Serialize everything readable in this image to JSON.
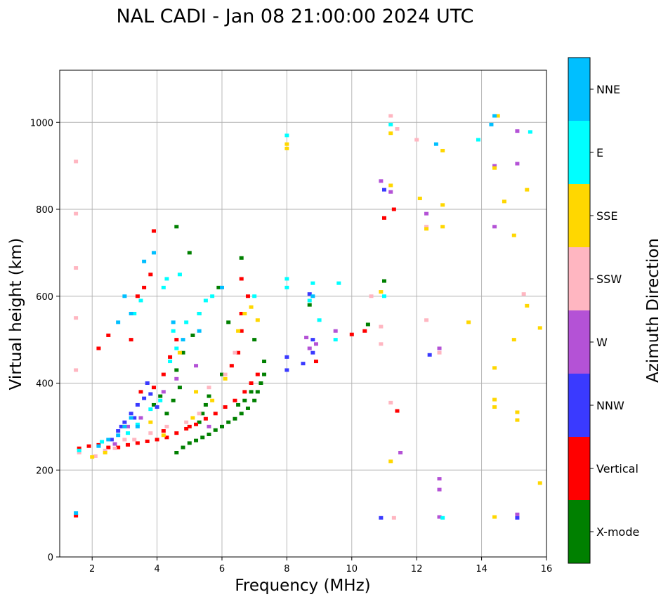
{
  "chart_data": {
    "type": "scatter",
    "title": "NAL CADI - Jan 08 21:00:00 2024 UTC",
    "xlabel": "Frequency (MHz)",
    "ylabel": "Virtual height (km)",
    "xlim": [
      1,
      16
    ],
    "ylim": [
      0,
      1120
    ],
    "xticks": [
      2,
      4,
      6,
      8,
      10,
      12,
      14,
      16
    ],
    "yticks": [
      0,
      200,
      400,
      600,
      800,
      1000
    ],
    "grid": true,
    "colorbar": {
      "label": "Azimuth Direction",
      "categories": [
        {
          "name": "X-mode",
          "color": "#008000"
        },
        {
          "name": "Vertical",
          "color": "#ff0000"
        },
        {
          "name": "NNW",
          "color": "#3a3aff"
        },
        {
          "name": "W",
          "color": "#b452d6"
        },
        {
          "name": "SSW",
          "color": "#ffb6c1"
        },
        {
          "name": "SSE",
          "color": "#ffd700"
        },
        {
          "name": "E",
          "color": "#00ffff"
        },
        {
          "name": "NNE",
          "color": "#00bfff"
        }
      ]
    },
    "series": [
      {
        "name": "X-mode",
        "points": [
          [
            4.6,
            240
          ],
          [
            4.8,
            252
          ],
          [
            5.0,
            262
          ],
          [
            5.2,
            268
          ],
          [
            5.4,
            275
          ],
          [
            5.6,
            282
          ],
          [
            5.8,
            292
          ],
          [
            6.0,
            300
          ],
          [
            6.2,
            310
          ],
          [
            6.4,
            318
          ],
          [
            6.6,
            330
          ],
          [
            6.8,
            342
          ],
          [
            7.0,
            360
          ],
          [
            7.1,
            380
          ],
          [
            7.2,
            400
          ],
          [
            7.3,
            420
          ],
          [
            7.3,
            450
          ],
          [
            6.9,
            380
          ],
          [
            6.7,
            360
          ],
          [
            6.5,
            350
          ],
          [
            5.4,
            330
          ],
          [
            5.5,
            350
          ],
          [
            5.6,
            370
          ],
          [
            5.3,
            310
          ],
          [
            4.3,
            330
          ],
          [
            4.5,
            360
          ],
          [
            4.7,
            390
          ],
          [
            4.6,
            430
          ],
          [
            4.8,
            470
          ],
          [
            5.1,
            510
          ],
          [
            5.3,
            560
          ],
          [
            6.6,
            688
          ],
          [
            4.6,
            760
          ],
          [
            5.9,
            620
          ],
          [
            6.2,
            540
          ],
          [
            7.0,
            500
          ],
          [
            8.7,
            580
          ],
          [
            10.5,
            535
          ],
          [
            11.0,
            635
          ],
          [
            4.1,
            370
          ],
          [
            3.9,
            350
          ],
          [
            6.0,
            420
          ],
          [
            5.0,
            700
          ]
        ]
      },
      {
        "name": "Vertical",
        "points": [
          [
            1.6,
            250
          ],
          [
            1.9,
            255
          ],
          [
            2.2,
            258
          ],
          [
            2.5,
            252
          ],
          [
            2.8,
            252
          ],
          [
            3.1,
            258
          ],
          [
            3.4,
            262
          ],
          [
            3.7,
            266
          ],
          [
            4.0,
            270
          ],
          [
            4.3,
            275
          ],
          [
            4.6,
            285
          ],
          [
            4.9,
            295
          ],
          [
            5.2,
            305
          ],
          [
            5.5,
            318
          ],
          [
            5.8,
            330
          ],
          [
            6.1,
            345
          ],
          [
            6.4,
            360
          ],
          [
            6.7,
            380
          ],
          [
            6.9,
            400
          ],
          [
            7.1,
            420
          ],
          [
            6.3,
            440
          ],
          [
            6.5,
            470
          ],
          [
            6.6,
            520
          ],
          [
            6.6,
            560
          ],
          [
            6.6,
            640
          ],
          [
            6.8,
            600
          ],
          [
            3.5,
            380
          ],
          [
            3.9,
            390
          ],
          [
            4.2,
            420
          ],
          [
            4.4,
            460
          ],
          [
            4.6,
            500
          ],
          [
            3.2,
            500
          ],
          [
            2.5,
            510
          ],
          [
            2.2,
            480
          ],
          [
            3.8,
            650
          ],
          [
            3.6,
            620
          ],
          [
            3.4,
            600
          ],
          [
            3.9,
            750
          ],
          [
            10.4,
            520
          ],
          [
            10.0,
            512
          ],
          [
            11.0,
            780
          ],
          [
            11.3,
            800
          ],
          [
            11.4,
            336
          ],
          [
            8.9,
            450
          ],
          [
            4.2,
            290
          ],
          [
            5.0,
            300
          ],
          [
            1.5,
            95
          ]
        ]
      },
      {
        "name": "NNW",
        "points": [
          [
            2.6,
            270
          ],
          [
            2.8,
            290
          ],
          [
            3.0,
            310
          ],
          [
            3.2,
            330
          ],
          [
            3.4,
            350
          ],
          [
            3.6,
            365
          ],
          [
            3.8,
            375
          ],
          [
            4.0,
            345
          ],
          [
            3.7,
            400
          ],
          [
            3.3,
            320
          ],
          [
            2.9,
            300
          ],
          [
            8.0,
            430
          ],
          [
            8.0,
            460
          ],
          [
            8.5,
            445
          ],
          [
            8.8,
            470
          ],
          [
            8.8,
            500
          ],
          [
            8.7,
            605
          ],
          [
            10.9,
            90
          ],
          [
            11.0,
            845
          ],
          [
            12.4,
            465
          ],
          [
            15.1,
            90
          ]
        ]
      },
      {
        "name": "W",
        "points": [
          [
            2.7,
            260
          ],
          [
            3.1,
            300
          ],
          [
            3.5,
            320
          ],
          [
            4.2,
            380
          ],
          [
            4.6,
            410
          ],
          [
            5.2,
            440
          ],
          [
            5.6,
            300
          ],
          [
            8.6,
            505
          ],
          [
            8.7,
            480
          ],
          [
            8.9,
            490
          ],
          [
            9.5,
            520
          ],
          [
            10.9,
            865
          ],
          [
            11.2,
            840
          ],
          [
            11.5,
            240
          ],
          [
            12.3,
            790
          ],
          [
            12.7,
            155
          ],
          [
            12.7,
            180
          ],
          [
            12.7,
            92
          ],
          [
            12.7,
            480
          ],
          [
            14.4,
            900
          ],
          [
            14.4,
            760
          ],
          [
            15.1,
            905
          ],
          [
            15.1,
            980
          ],
          [
            15.1,
            98
          ]
        ]
      },
      {
        "name": "SSW",
        "points": [
          [
            1.6,
            240
          ],
          [
            2.1,
            232
          ],
          [
            2.4,
            245
          ],
          [
            2.7,
            250
          ],
          [
            3.0,
            270
          ],
          [
            3.3,
            270
          ],
          [
            3.8,
            285
          ],
          [
            4.3,
            300
          ],
          [
            4.9,
            310
          ],
          [
            5.3,
            330
          ],
          [
            5.6,
            390
          ],
          [
            6.1,
            420
          ],
          [
            6.4,
            470
          ],
          [
            1.5,
            665
          ],
          [
            1.5,
            910
          ],
          [
            1.5,
            550
          ],
          [
            1.5,
            430
          ],
          [
            1.5,
            790
          ],
          [
            10.6,
            600
          ],
          [
            10.9,
            490
          ],
          [
            10.9,
            530
          ],
          [
            11.2,
            355
          ],
          [
            11.2,
            1015
          ],
          [
            11.4,
            985
          ],
          [
            11.3,
            90
          ],
          [
            12.3,
            760
          ],
          [
            12.7,
            470
          ],
          [
            12.3,
            545
          ],
          [
            12.0,
            960
          ],
          [
            15.3,
            605
          ]
        ]
      },
      {
        "name": "SSE",
        "points": [
          [
            2.0,
            230
          ],
          [
            2.4,
            240
          ],
          [
            3.0,
            300
          ],
          [
            3.8,
            310
          ],
          [
            4.2,
            280
          ],
          [
            5.1,
            320
          ],
          [
            5.7,
            360
          ],
          [
            6.1,
            410
          ],
          [
            6.5,
            520
          ],
          [
            6.7,
            560
          ],
          [
            6.9,
            575
          ],
          [
            7.1,
            545
          ],
          [
            4.7,
            470
          ],
          [
            5.2,
            380
          ],
          [
            8.0,
            940
          ],
          [
            8.0,
            950
          ],
          [
            10.9,
            610
          ],
          [
            11.2,
            220
          ],
          [
            11.2,
            975
          ],
          [
            11.2,
            855
          ],
          [
            12.1,
            825
          ],
          [
            12.3,
            755
          ],
          [
            12.8,
            810
          ],
          [
            12.8,
            760
          ],
          [
            12.8,
            935
          ],
          [
            13.6,
            540
          ],
          [
            14.4,
            435
          ],
          [
            14.4,
            345
          ],
          [
            14.4,
            362
          ],
          [
            14.4,
            895
          ],
          [
            14.4,
            92
          ],
          [
            14.5,
            1015
          ],
          [
            14.7,
            818
          ],
          [
            15.0,
            740
          ],
          [
            15.0,
            500
          ],
          [
            15.1,
            333
          ],
          [
            15.1,
            315
          ],
          [
            15.4,
            845
          ],
          [
            15.4,
            578
          ],
          [
            15.8,
            170
          ],
          [
            15.8,
            527
          ]
        ]
      },
      {
        "name": "E",
        "points": [
          [
            1.6,
            245
          ],
          [
            2.3,
            265
          ],
          [
            3.1,
            285
          ],
          [
            3.4,
            305
          ],
          [
            3.8,
            340
          ],
          [
            4.1,
            360
          ],
          [
            4.4,
            450
          ],
          [
            4.5,
            520
          ],
          [
            4.6,
            480
          ],
          [
            4.9,
            540
          ],
          [
            5.3,
            560
          ],
          [
            5.5,
            590
          ],
          [
            5.7,
            600
          ],
          [
            4.3,
            640
          ],
          [
            4.7,
            650
          ],
          [
            4.2,
            620
          ],
          [
            3.5,
            590
          ],
          [
            3.3,
            560
          ],
          [
            7.0,
            600
          ],
          [
            8.0,
            970
          ],
          [
            8.0,
            640
          ],
          [
            8.0,
            620
          ],
          [
            8.8,
            630
          ],
          [
            8.7,
            590
          ],
          [
            9.0,
            545
          ],
          [
            9.6,
            630
          ],
          [
            9.5,
            500
          ],
          [
            11.0,
            600
          ],
          [
            11.2,
            995
          ],
          [
            12.8,
            90
          ],
          [
            13.9,
            960
          ],
          [
            15.5,
            978
          ]
        ]
      },
      {
        "name": "NNE",
        "points": [
          [
            2.2,
            255
          ],
          [
            2.5,
            270
          ],
          [
            2.8,
            280
          ],
          [
            3.0,
            300
          ],
          [
            3.2,
            320
          ],
          [
            3.4,
            300
          ],
          [
            3.0,
            600
          ],
          [
            3.2,
            560
          ],
          [
            2.8,
            540
          ],
          [
            3.6,
            680
          ],
          [
            3.9,
            700
          ],
          [
            4.5,
            540
          ],
          [
            4.8,
            500
          ],
          [
            5.3,
            520
          ],
          [
            6.0,
            620
          ],
          [
            8.8,
            600
          ],
          [
            12.6,
            950
          ],
          [
            14.4,
            1015
          ],
          [
            14.3,
            995
          ],
          [
            1.5,
            101
          ]
        ]
      }
    ]
  }
}
